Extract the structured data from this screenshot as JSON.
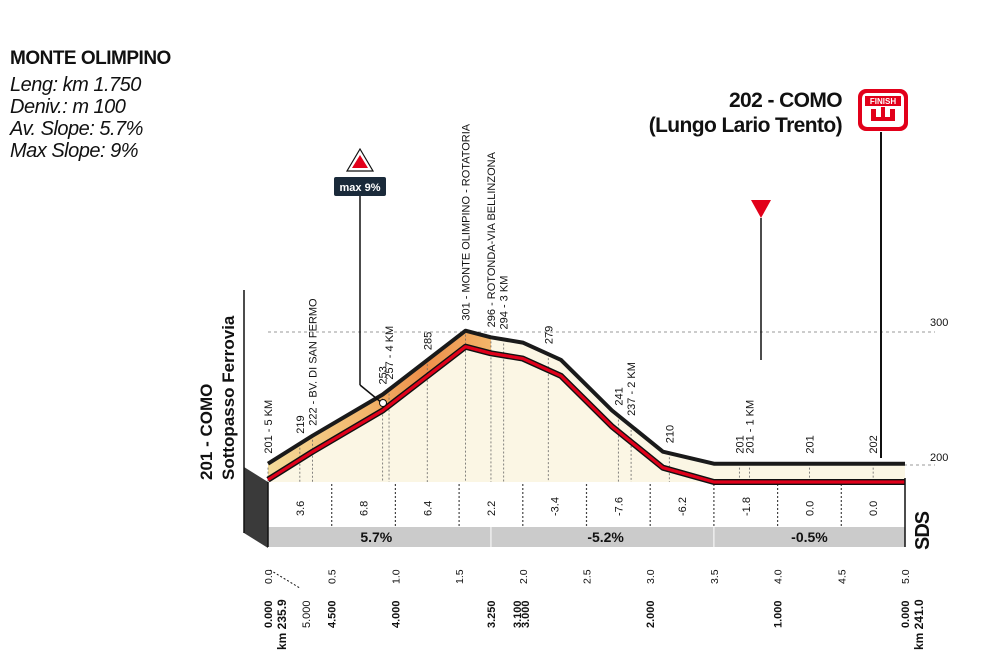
{
  "climb": {
    "name": "MONTE OLIMPINO",
    "length": "Leng: km 1.750",
    "denivelation": "Deniv.: m 100",
    "avg_slope": "Av. Slope: 5.7%",
    "max_slope": "Max Slope: 9%"
  },
  "finish": {
    "line1": "202 - COMO",
    "line2": "(Lungo Lario Trento)",
    "badge": "FINISH"
  },
  "max_marker": "max 9%",
  "start_label": {
    "line1": "201 - COMO",
    "line2": "Sottopasso Ferrovia"
  },
  "brand": "SDS",
  "colors": {
    "ground": "#fbf6e4",
    "climb_light": "#f4dc9a",
    "climb_mid": "#f2b56a",
    "climb_dark": "#ee8f4a",
    "road": "#e0001a",
    "profile": "#1a1a1a",
    "band": "#cbcbcb"
  },
  "chart_data": {
    "type": "area",
    "title": "MONTE OLIMPINO",
    "x_unit": "km",
    "xlim": [
      0,
      5
    ],
    "ylim": [
      200,
      300
    ],
    "yticks": [
      200,
      300
    ],
    "xticks": [
      0.0,
      0.5,
      1.0,
      1.5,
      2.0,
      2.5,
      3.0,
      3.5,
      4.0,
      4.5,
      5.0
    ],
    "xtick_labels": [
      "0.0",
      "0.5",
      "1.0",
      "1.5",
      "2.0",
      "2.5",
      "3.0",
      "3.5",
      "4.0",
      "4.5",
      "5.0"
    ],
    "profile": {
      "x": [
        0.0,
        0.35,
        0.9,
        1.55,
        1.75,
        2.0,
        2.3,
        2.7,
        3.1,
        3.5,
        5.0
      ],
      "y": [
        201,
        222,
        253,
        301,
        296,
        292,
        279,
        241,
        210,
        201,
        201
      ]
    },
    "climb_range": [
      0.0,
      1.75
    ],
    "max_slope_marker": {
      "x": 0.9,
      "label": "max 9%"
    },
    "triangle_marker": {
      "x": 3.8
    },
    "segment_slopes": [
      {
        "x": 0.25,
        "value": "3.6"
      },
      {
        "x": 0.75,
        "value": "6.8"
      },
      {
        "x": 1.25,
        "value": "6.4"
      },
      {
        "x": 1.75,
        "value": "2.2"
      },
      {
        "x": 2.25,
        "value": "-3.4"
      },
      {
        "x": 2.75,
        "value": "-7.6"
      },
      {
        "x": 3.25,
        "value": "-6.2"
      },
      {
        "x": 3.75,
        "value": "-1.8"
      },
      {
        "x": 4.25,
        "value": "0.0"
      },
      {
        "x": 4.75,
        "value": "0.0"
      }
    ],
    "section_slopes": [
      {
        "x": 0.85,
        "value": "5.7%"
      },
      {
        "x": 2.65,
        "value": "-5.2%"
      },
      {
        "x": 4.25,
        "value": "-0.5%"
      }
    ],
    "section_dividers": [
      1.75,
      3.5
    ],
    "points": [
      {
        "x": 0.0,
        "alt": "201",
        "name": "5 KM"
      },
      {
        "x": 0.25,
        "alt": "219",
        "name": ""
      },
      {
        "x": 0.35,
        "alt": "222",
        "name": "BV. DI SAN FERMO"
      },
      {
        "x": 0.9,
        "alt": "253",
        "name": ""
      },
      {
        "x": 0.95,
        "alt": "257",
        "name": "4 KM"
      },
      {
        "x": 1.25,
        "alt": "285",
        "name": ""
      },
      {
        "x": 1.55,
        "alt": "301",
        "name": "MONTE OLIMPINO - ROTATORIA"
      },
      {
        "x": 1.75,
        "alt": "296",
        "name": "ROTONDA-VIA BELLINZONA"
      },
      {
        "x": 1.85,
        "alt": "294",
        "name": "3 KM"
      },
      {
        "x": 2.2,
        "alt": "279",
        "name": ""
      },
      {
        "x": 2.75,
        "alt": "241",
        "name": ""
      },
      {
        "x": 2.85,
        "alt": "237",
        "name": "2 KM"
      },
      {
        "x": 3.15,
        "alt": "210",
        "name": ""
      },
      {
        "x": 3.7,
        "alt": "201",
        "name": ""
      },
      {
        "x": 3.78,
        "alt": "201",
        "name": "1 KM"
      },
      {
        "x": 4.25,
        "alt": "201",
        "name": ""
      },
      {
        "x": 4.75,
        "alt": "202",
        "name": ""
      }
    ],
    "km_remaining": [
      {
        "x": 0.0,
        "label": "0.000"
      },
      {
        "x": 0.5,
        "label": "4.500"
      },
      {
        "x": 1.0,
        "label": "4.000"
      },
      {
        "x": 1.75,
        "label": "3.250"
      },
      {
        "x": 2.0,
        "label": "3.100"
      },
      {
        "x": 2.0,
        "label": "3.000"
      },
      {
        "x": 3.0,
        "label": "2.000"
      },
      {
        "x": 4.0,
        "label": "1.000"
      },
      {
        "x": 5.0,
        "label": "0.000"
      }
    ],
    "start_km": {
      "label": "km 235.9",
      "sub": "5.000"
    },
    "end_km": {
      "label": "km 241.0"
    }
  }
}
